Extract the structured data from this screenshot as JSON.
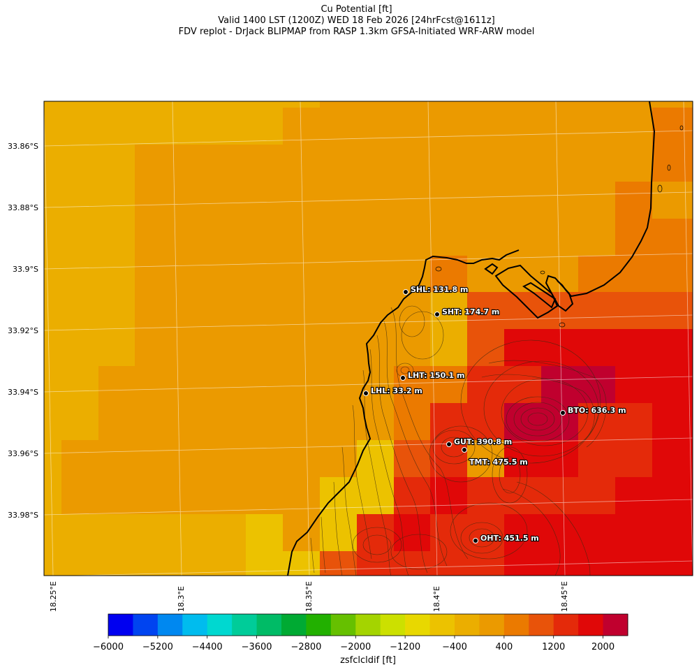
{
  "title": {
    "line1": "Cu Potential [ft]",
    "line2": "Valid 1400 LST (1200Z) WED 18 Feb 2026 [24hrFcst@1611z]",
    "line3": "FDV replot - DrJack BLIPMAP from RASP 1.3km GFSA-Initiated WRF-ARW model"
  },
  "map": {
    "lat_labels": [
      "33.86°S",
      "33.88°S",
      "33.9°S",
      "33.92°S",
      "33.94°S",
      "33.96°S",
      "33.98°S"
    ],
    "lon_labels": [
      "18.25°E",
      "18.3°E",
      "18.35°E",
      "18.4°E",
      "18.45°E"
    ],
    "sites": [
      {
        "name": "SHL",
        "value": "131.8 m",
        "label": "SHL: 131.8 m"
      },
      {
        "name": "SHT",
        "value": "174.7 m",
        "label": "SHT: 174.7 m"
      },
      {
        "name": "LHT",
        "value": "150.1 m",
        "label": "LHT: 150.1 m"
      },
      {
        "name": "LHL",
        "value": "33.2 m",
        "label": "LHL: 33.2 m"
      },
      {
        "name": "BTO",
        "value": "636.3 m",
        "label": "BTO: 636.3 m"
      },
      {
        "name": "GUT",
        "value": "390.8 m",
        "label": "GUT: 390.8 m"
      },
      {
        "name": "TMT",
        "value": "475.5 m",
        "label": "TMT: 475.5 m"
      },
      {
        "name": "OHT",
        "value": "451.5 m",
        "label": "OHT: 451.5 m"
      }
    ]
  },
  "colorbar": {
    "label": "zsfclcldif [ft]",
    "tick_labels": [
      "-6000",
      "-5200",
      "-4400",
      "-3600",
      "-2800",
      "-2000",
      "-1200",
      "-400",
      "400",
      "1200",
      "2000"
    ],
    "colors": [
      "#0000f0",
      "#0044f0",
      "#0088f0",
      "#00bcee",
      "#00d8d0",
      "#00cc99",
      "#00bb66",
      "#00aa33",
      "#22b000",
      "#66c000",
      "#a4d400",
      "#cce000",
      "#e8d800",
      "#ecc200",
      "#ebae00",
      "#eb9a00",
      "#eb7a00",
      "#e8530a",
      "#e42a0a",
      "#e00808",
      "#c0002e"
    ]
  },
  "colors": {
    "coast": "#000000",
    "grid": "#ffffff",
    "contour": "#3a2a10"
  }
}
